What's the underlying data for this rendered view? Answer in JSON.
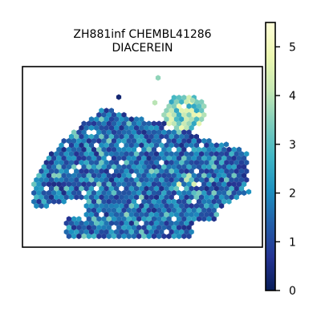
{
  "chart_data": {
    "type": "scatter",
    "subtype": "hexbin spatial expression map",
    "title_lines": [
      "ZH881inf CHEMBL41286",
      "DIACEREIN"
    ],
    "xlabel": "",
    "ylabel": "",
    "axes_ticks_visible": false,
    "grid": false,
    "colormap": "YlGnBu_r",
    "colorbar": {
      "range": [
        0,
        5.5
      ],
      "ticks": [
        0,
        1,
        2,
        3,
        4,
        5
      ],
      "tick_labels": [
        "0",
        "1",
        "2",
        "3",
        "4",
        "5"
      ],
      "colors": [
        "#081d58",
        "#253494",
        "#225ea8",
        "#1d91c0",
        "#41b6c4",
        "#7fcdbb",
        "#c7e9b4",
        "#edf8b1",
        "#ffffd9"
      ]
    },
    "value_distribution": {
      "typical_range": [
        0.5,
        2.5
      ],
      "high_value_region": "upper-right lobe",
      "max_observed": 5.5
    }
  }
}
